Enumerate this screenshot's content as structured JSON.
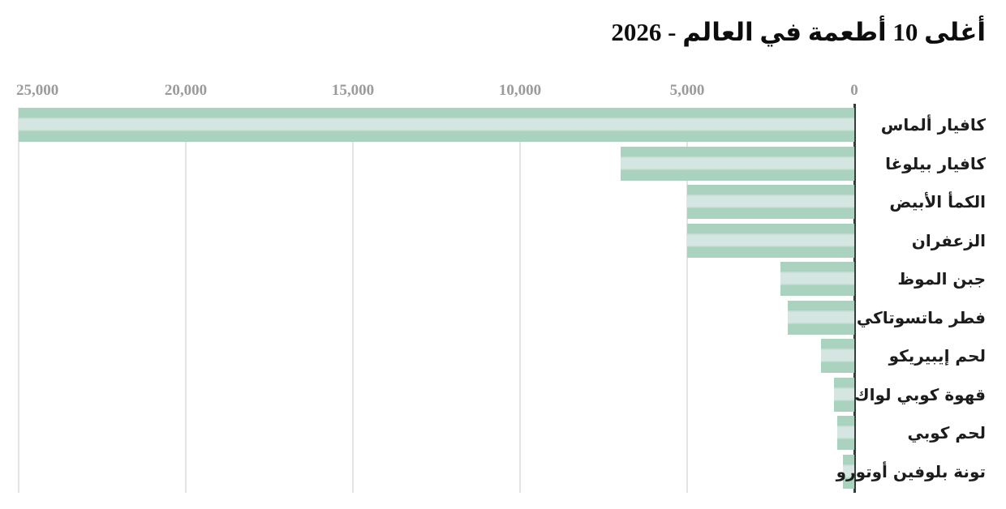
{
  "chart_data": {
    "type": "bar",
    "orientation": "horizontal",
    "direction": "rtl",
    "title": "أغلى 10 أطعمة في العالم - 2026",
    "categories": [
      "كافيار ألماس",
      "كافيار بيلوغا",
      "الكمأ الأبيض",
      "الزعفران",
      "جبن الموظ",
      "فطر ماتسوتاكي",
      "لحم إيبيريكو",
      "قهوة كوبي لواك",
      "لحم كوبي",
      "تونة بلوفين أوتورو"
    ],
    "values": [
      25000,
      7000,
      5000,
      5000,
      2200,
      2000,
      1000,
      600,
      500,
      350
    ],
    "xlim": [
      0,
      25000
    ],
    "x_ticks": [
      25000,
      20000,
      15000,
      10000,
      5000,
      0
    ],
    "x_tick_labels": [
      "25,000",
      "20,000",
      "15,000",
      "10,000",
      "5,000",
      "0"
    ],
    "grid": true,
    "zero_axis_side": "right",
    "legend": "none",
    "value_labels": "none"
  },
  "colors": {
    "bar_green": "#a9d2bf",
    "bar_inner_pale": "#d5e5e1",
    "bar_seam_top": "#c1dbce",
    "bar_seam_bottom": "#cbe0d6",
    "gridline": "#e4e4e4",
    "zero_axis": "#333f38",
    "tick_text": "#9b9b9b",
    "title_text": "#0d0d0d",
    "label_text": "#1c1c1c",
    "background": "#ffffff"
  }
}
